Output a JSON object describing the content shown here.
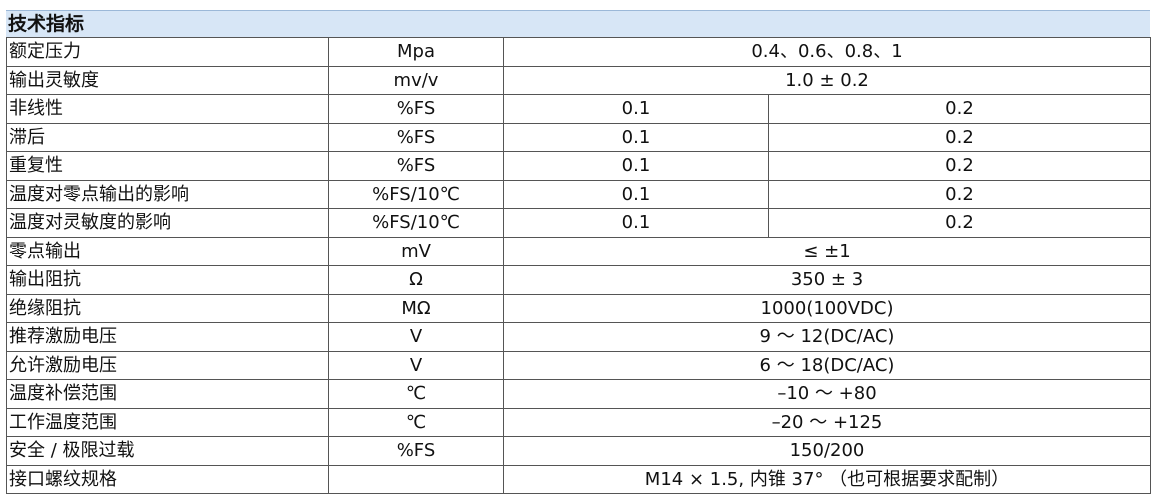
{
  "header": {
    "title": "技术指标"
  },
  "table": {
    "rows": [
      [
        "额定压力",
        "Mpa",
        "0.4、0.6、0.8、1"
      ],
      [
        "输出灵敏度",
        "mv/v",
        "1.0 ± 0.2"
      ],
      [
        "非线性",
        "%FS",
        "0.1",
        "0.2"
      ],
      [
        "滞后",
        "%FS",
        "0.1",
        "0.2"
      ],
      [
        "重复性",
        "%FS",
        "0.1",
        "0.2"
      ],
      [
        "温度对零点输出的影响",
        "%FS/10℃",
        "0.1",
        "0.2"
      ],
      [
        "温度对灵敏度的影响",
        "%FS/10℃",
        "0.1",
        "0.2"
      ],
      [
        "零点输出",
        "mV",
        "≤ ±1"
      ],
      [
        "输出阻抗",
        "Ω",
        "350 ± 3"
      ],
      [
        "绝缘阻抗",
        "MΩ",
        "1000(100VDC)"
      ],
      [
        "推荐激励电压",
        "V",
        "9 ～ 12(DC/AC)"
      ],
      [
        "允许激励电压",
        "V",
        "6 ～ 18(DC/AC)"
      ],
      [
        "温度补偿范围",
        "℃",
        "–10 ～ +80"
      ],
      [
        "工作温度范围",
        "℃",
        "–20 ～ +125"
      ],
      [
        "安全 / 极限过载",
        "%FS",
        "150/200"
      ],
      [
        "接口螺纹规格",
        "",
        "M14 × 1.5, 内锥 37° （也可根据要求配制）"
      ]
    ]
  }
}
